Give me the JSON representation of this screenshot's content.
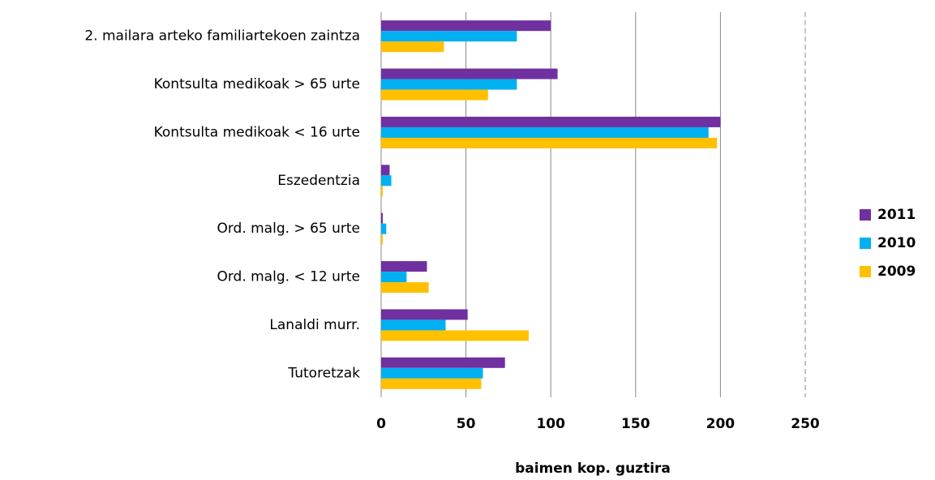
{
  "chart_data": {
    "type": "hbar",
    "categories": [
      "2. mailara arteko  familiartekoen zaintza",
      "Kontsulta medikoak > 65 urte",
      "Kontsulta medikoak < 16 urte",
      "Eszedentzia",
      "Ord. malg. > 65 urte",
      "Ord. malg. < 12 urte",
      "Lanaldi murr.",
      "Tutoretzak"
    ],
    "series": [
      {
        "name": "2011",
        "color": "#7030a0",
        "values": [
          100,
          104,
          200,
          5,
          1,
          27,
          51,
          73
        ]
      },
      {
        "name": "2010",
        "color": "#00b0f0",
        "values": [
          80,
          80,
          193,
          6,
          3,
          15,
          38,
          60
        ]
      },
      {
        "name": "2009",
        "color": "#ffc000",
        "values": [
          37,
          63,
          198,
          1,
          1,
          28,
          87,
          59
        ]
      }
    ],
    "xlabel": "baimen  kop. guztira",
    "xlim": [
      0,
      250
    ],
    "xticks": [
      0,
      50,
      100,
      150,
      200,
      250
    ],
    "grid": true,
    "legend": "right"
  }
}
